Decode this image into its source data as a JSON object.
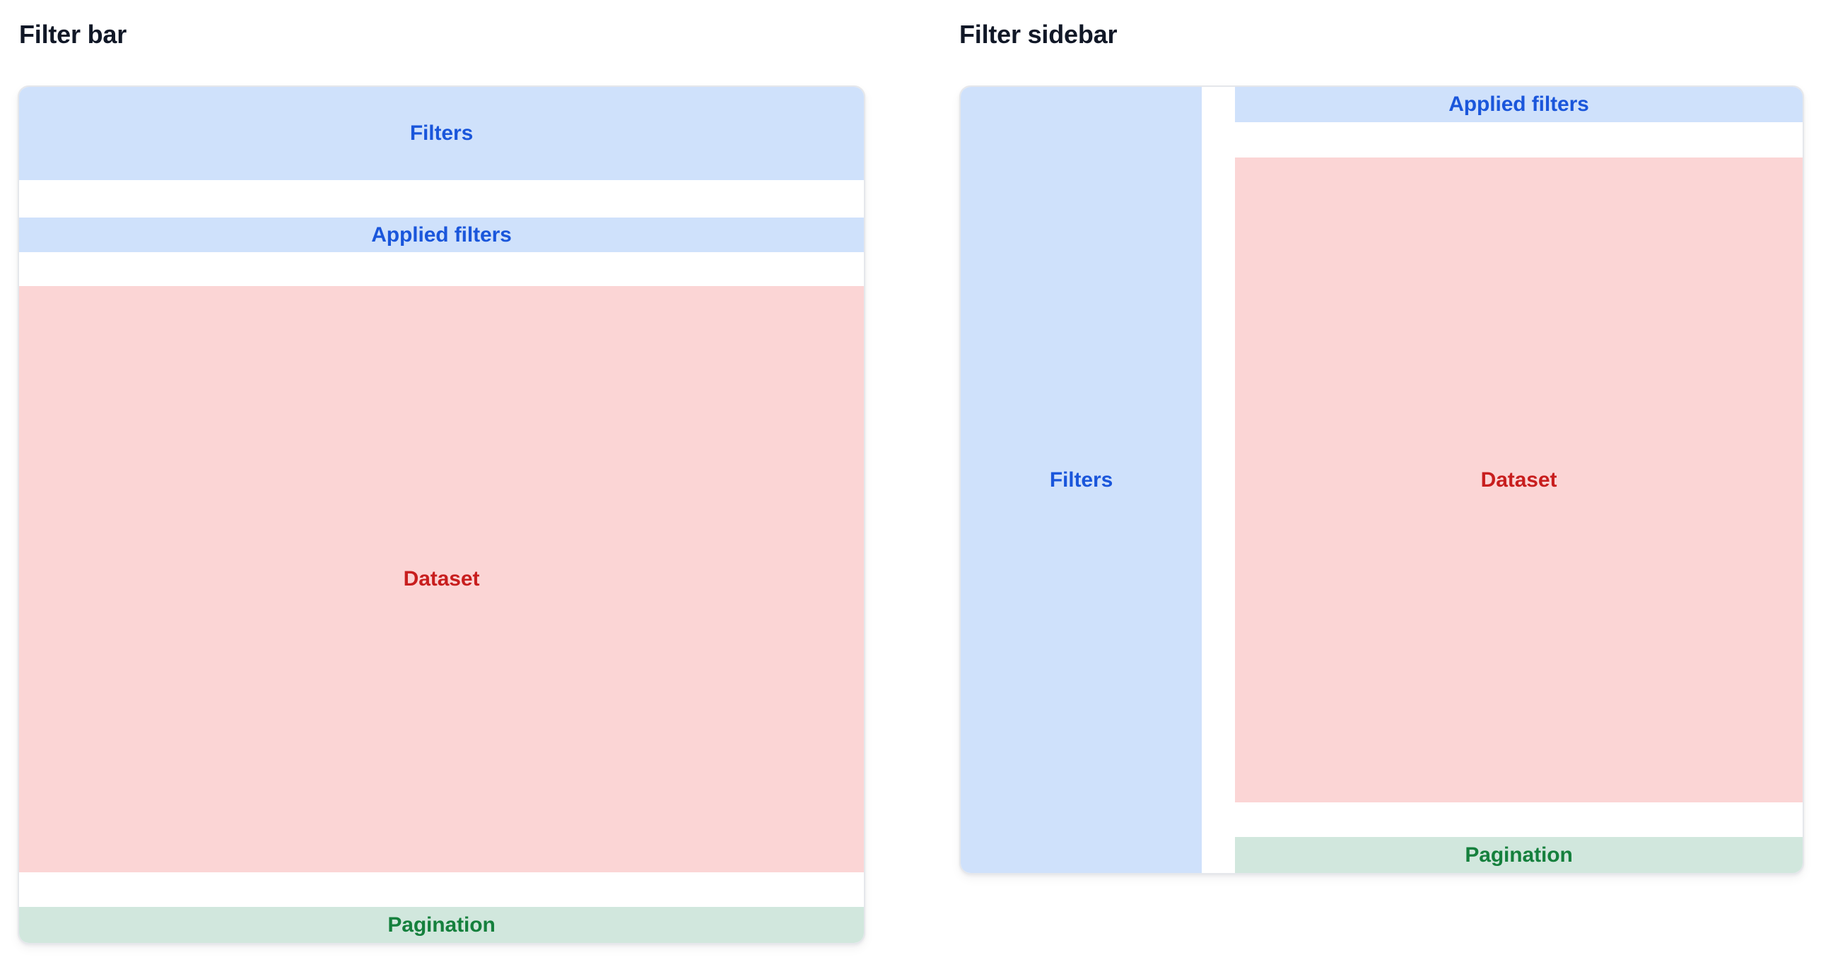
{
  "colors": {
    "page_bg": "#ffffff",
    "panel_border": "#e5e7eb",
    "heading_text": "#111827",
    "filters_bg": "#cfe1fb",
    "filters_text": "#1a56db",
    "dataset_bg": "#fbd5d5",
    "dataset_text": "#c81e1e",
    "pagination_bg": "#d1e7dd",
    "pagination_text": "#15803d"
  },
  "filter_bar": {
    "title": "Filter bar",
    "filters_label": "Filters",
    "applied_filters_label": "Applied filters",
    "dataset_label": "Dataset",
    "pagination_label": "Pagination"
  },
  "filter_sidebar": {
    "title": "Filter sidebar",
    "filters_label": "Filters",
    "applied_filters_label": "Applied filters",
    "dataset_label": "Dataset",
    "pagination_label": "Pagination"
  }
}
